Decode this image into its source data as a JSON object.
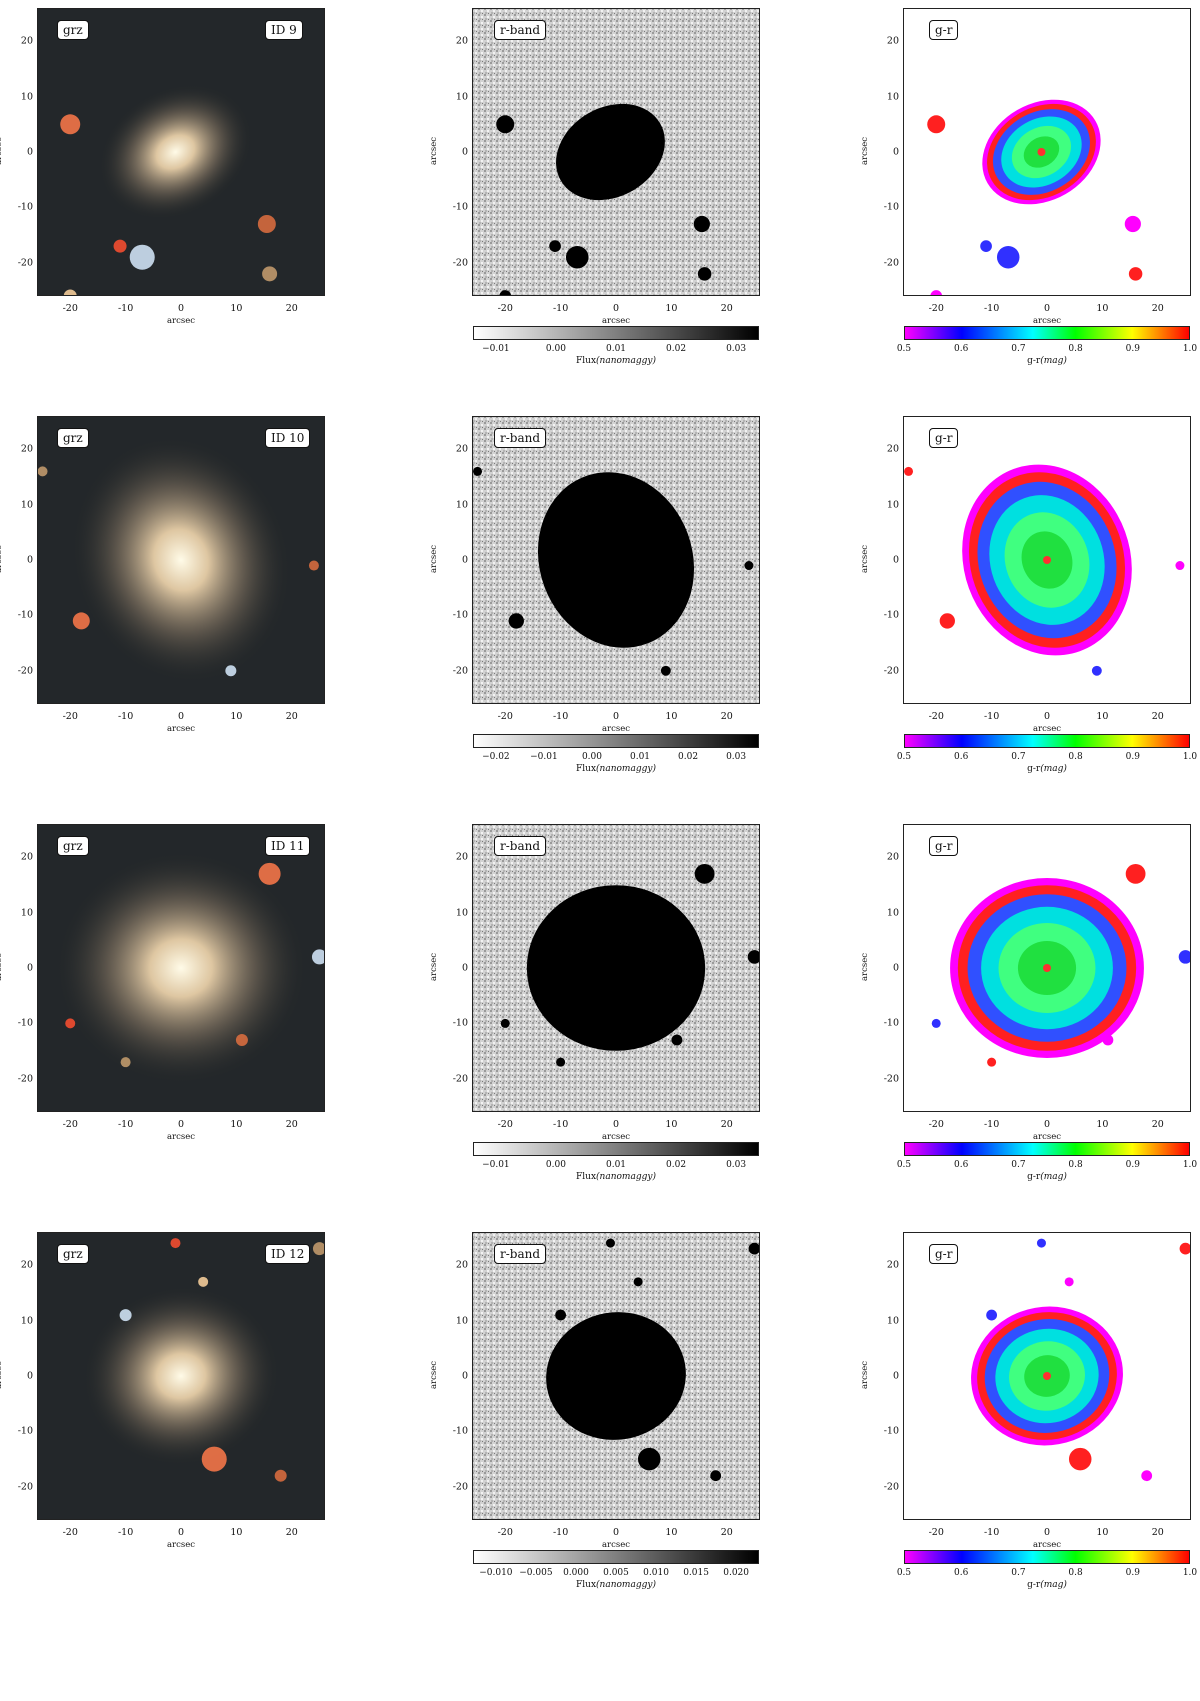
{
  "rows": [
    {
      "id_label": "ID 9",
      "grz_label": "grz",
      "rband_label": "r-band",
      "gr_label": "g-r",
      "axis_label": "arcsec",
      "rband_cbar": {
        "ticks": [
          "−0.01",
          "0.00",
          "0.01",
          "0.02",
          "0.03"
        ],
        "label": "Flux",
        "unit": "(nanomaggy)"
      },
      "gr_cbar": {
        "ticks": [
          "0.5",
          "0.6",
          "0.7",
          "0.8",
          "0.9",
          "1.0"
        ],
        "label": "g-r",
        "unit": "(mag)"
      }
    },
    {
      "id_label": "ID 10",
      "grz_label": "grz",
      "rband_label": "r-band",
      "gr_label": "g-r",
      "axis_label": "arcsec",
      "rband_cbar": {
        "ticks": [
          "−0.02",
          "−0.01",
          "0.00",
          "0.01",
          "0.02",
          "0.03"
        ],
        "label": "Flux",
        "unit": "(nanomaggy)"
      },
      "gr_cbar": {
        "ticks": [
          "0.5",
          "0.6",
          "0.7",
          "0.8",
          "0.9",
          "1.0"
        ],
        "label": "g-r",
        "unit": "(mag)"
      }
    },
    {
      "id_label": "ID 11",
      "grz_label": "grz",
      "rband_label": "r-band",
      "gr_label": "g-r",
      "axis_label": "arcsec",
      "rband_cbar": {
        "ticks": [
          "−0.01",
          "0.00",
          "0.01",
          "0.02",
          "0.03"
        ],
        "label": "Flux",
        "unit": "(nanomaggy)"
      },
      "gr_cbar": {
        "ticks": [
          "0.5",
          "0.6",
          "0.7",
          "0.8",
          "0.9",
          "1.0"
        ],
        "label": "g-r",
        "unit": "(mag)"
      }
    },
    {
      "id_label": "ID 12",
      "grz_label": "grz",
      "rband_label": "r-band",
      "gr_label": "g-r",
      "axis_label": "arcsec",
      "rband_cbar": {
        "ticks": [
          "−0.010",
          "−0.005",
          "0.000",
          "0.005",
          "0.010",
          "0.015",
          "0.020"
        ],
        "label": "Flux",
        "unit": "(nanomaggy)"
      },
      "gr_cbar": {
        "ticks": [
          "0.5",
          "0.6",
          "0.7",
          "0.8",
          "0.9",
          "1.0"
        ],
        "label": "g-r",
        "unit": "(mag)"
      }
    }
  ],
  "axis_ticks": [
    "-20",
    "-10",
    "0",
    "10",
    "20"
  ],
  "y_axis_ticks": [
    "20",
    "10",
    "0",
    "-10",
    "-20"
  ]
}
